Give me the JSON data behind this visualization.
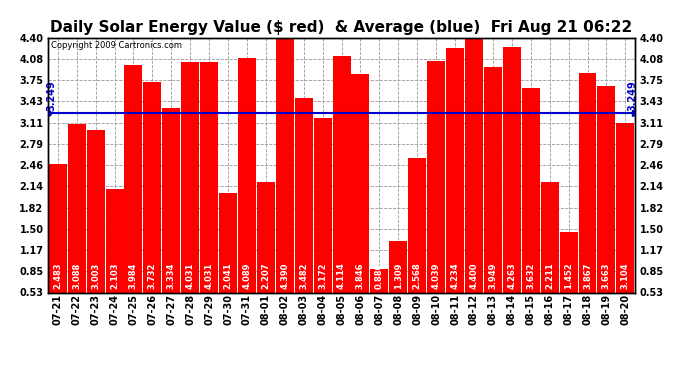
{
  "title": "Daily Solar Energy Value ($ red)  & Average (blue)  Fri Aug 21 06:22",
  "copyright": "Copyright 2009 Cartronics.com",
  "average": 3.249,
  "categories": [
    "07-21",
    "07-22",
    "07-23",
    "07-24",
    "07-25",
    "07-26",
    "07-27",
    "07-28",
    "07-29",
    "07-30",
    "07-31",
    "08-01",
    "08-02",
    "08-03",
    "08-04",
    "08-05",
    "08-06",
    "08-07",
    "08-08",
    "08-09",
    "08-10",
    "08-11",
    "08-12",
    "08-13",
    "08-14",
    "08-15",
    "08-16",
    "08-17",
    "08-18",
    "08-19",
    "08-20"
  ],
  "values": [
    2.483,
    3.088,
    3.003,
    2.103,
    3.984,
    3.732,
    3.334,
    4.031,
    4.031,
    2.041,
    4.089,
    2.207,
    4.39,
    3.482,
    3.172,
    4.114,
    3.846,
    0.88,
    1.309,
    2.568,
    4.039,
    4.234,
    4.4,
    3.949,
    4.263,
    3.632,
    2.211,
    1.452,
    3.867,
    3.663,
    3.104
  ],
  "bar_color": "#ff0000",
  "avg_line_color": "#0000cc",
  "background_color": "#ffffff",
  "plot_bg_color": "#ffffff",
  "grid_color": "#999999",
  "ylim_min": 0.53,
  "ylim_max": 4.4,
  "yticks": [
    0.53,
    0.85,
    1.17,
    1.5,
    1.82,
    2.14,
    2.46,
    2.79,
    3.11,
    3.43,
    3.75,
    4.08,
    4.4
  ],
  "title_fontsize": 11,
  "tick_fontsize": 7,
  "bar_label_fontsize": 6,
  "avg_label": "3.249",
  "avg_label_fontsize": 7,
  "copyright_fontsize": 6
}
